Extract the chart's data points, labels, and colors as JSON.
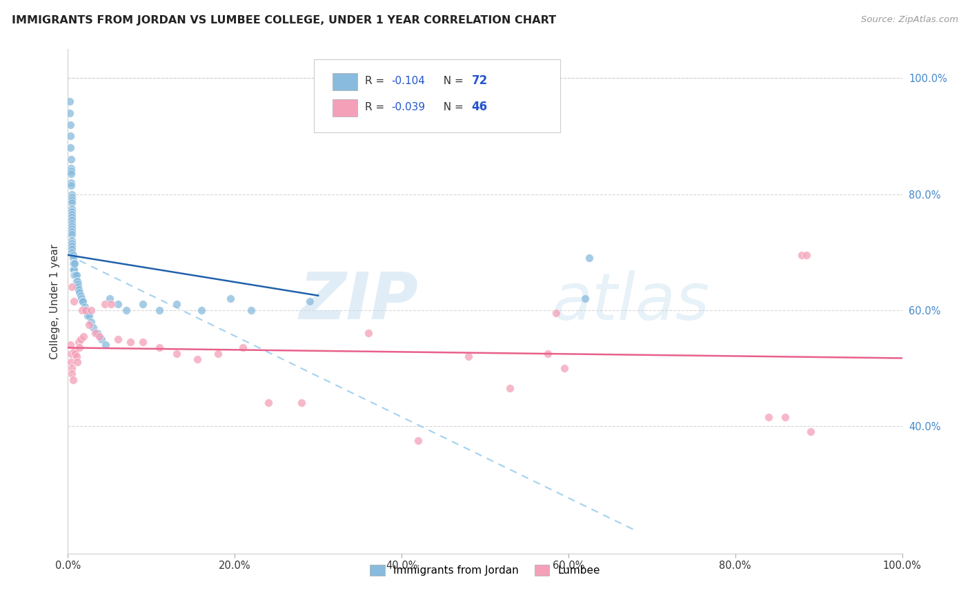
{
  "title": "IMMIGRANTS FROM JORDAN VS LUMBEE COLLEGE, UNDER 1 YEAR CORRELATION CHART",
  "source": "Source: ZipAtlas.com",
  "ylabel": "College, Under 1 year",
  "legend_label1": "Immigrants from Jordan",
  "legend_label2": "Lumbee",
  "r1": -0.104,
  "n1": 72,
  "r2": -0.039,
  "n2": 46,
  "xlim": [
    0.0,
    1.0
  ],
  "ylim": [
    0.18,
    1.05
  ],
  "xtick_labels": [
    "0.0%",
    "20.0%",
    "40.0%",
    "60.0%",
    "80.0%",
    "100.0%"
  ],
  "xtick_vals": [
    0.0,
    0.2,
    0.4,
    0.6,
    0.8,
    1.0
  ],
  "ytick_labels_right": [
    "40.0%",
    "60.0%",
    "80.0%",
    "100.0%"
  ],
  "ytick_vals_right": [
    0.4,
    0.6,
    0.8,
    1.0
  ],
  "color_blue": "#88bbdd",
  "color_pink": "#f4a0b8",
  "color_line_blue": "#2060aa",
  "color_line_pink": "#e8608a",
  "color_dashed": "#99ccee",
  "background": "#ffffff",
  "watermark_zip": "ZIP",
  "watermark_atlas": "atlas",
  "blue_line_x0": 0.0,
  "blue_line_y0": 0.695,
  "blue_line_x1": 0.3,
  "blue_line_y1": 0.625,
  "dash_line_x0": 0.0,
  "dash_line_y0": 0.695,
  "dash_line_x1": 0.68,
  "dash_line_y1": 0.22,
  "pink_line_x0": 0.0,
  "pink_line_y0": 0.535,
  "pink_line_x1": 1.0,
  "pink_line_y1": 0.517,
  "blue_points_x": [
    0.002,
    0.002,
    0.003,
    0.003,
    0.003,
    0.004,
    0.004,
    0.004,
    0.004,
    0.004,
    0.004,
    0.005,
    0.005,
    0.005,
    0.005,
    0.005,
    0.005,
    0.005,
    0.005,
    0.005,
    0.005,
    0.005,
    0.005,
    0.005,
    0.005,
    0.005,
    0.005,
    0.005,
    0.005,
    0.005,
    0.006,
    0.006,
    0.006,
    0.006,
    0.007,
    0.007,
    0.007,
    0.008,
    0.008,
    0.009,
    0.01,
    0.01,
    0.011,
    0.012,
    0.012,
    0.013,
    0.014,
    0.015,
    0.016,
    0.017,
    0.018,
    0.02,
    0.022,
    0.024,
    0.025,
    0.028,
    0.03,
    0.035,
    0.04,
    0.045,
    0.05,
    0.06,
    0.07,
    0.09,
    0.11,
    0.13,
    0.16,
    0.195,
    0.22,
    0.29,
    0.62,
    0.625
  ],
  "blue_points_y": [
    0.96,
    0.94,
    0.92,
    0.9,
    0.88,
    0.86,
    0.845,
    0.84,
    0.835,
    0.82,
    0.815,
    0.8,
    0.795,
    0.79,
    0.785,
    0.775,
    0.77,
    0.765,
    0.76,
    0.755,
    0.75,
    0.745,
    0.74,
    0.735,
    0.73,
    0.72,
    0.715,
    0.71,
    0.705,
    0.7,
    0.695,
    0.69,
    0.68,
    0.67,
    0.68,
    0.67,
    0.66,
    0.68,
    0.66,
    0.66,
    0.66,
    0.65,
    0.65,
    0.645,
    0.64,
    0.635,
    0.63,
    0.625,
    0.62,
    0.615,
    0.615,
    0.605,
    0.6,
    0.59,
    0.59,
    0.58,
    0.57,
    0.56,
    0.55,
    0.54,
    0.62,
    0.61,
    0.6,
    0.61,
    0.6,
    0.61,
    0.6,
    0.62,
    0.6,
    0.615,
    0.62,
    0.69
  ],
  "pink_points_x": [
    0.003,
    0.004,
    0.004,
    0.005,
    0.005,
    0.005,
    0.006,
    0.007,
    0.008,
    0.009,
    0.01,
    0.011,
    0.013,
    0.014,
    0.015,
    0.017,
    0.019,
    0.021,
    0.025,
    0.028,
    0.033,
    0.038,
    0.044,
    0.052,
    0.06,
    0.075,
    0.09,
    0.11,
    0.13,
    0.155,
    0.18,
    0.21,
    0.24,
    0.28,
    0.36,
    0.42,
    0.48,
    0.53,
    0.575,
    0.585,
    0.595,
    0.84,
    0.86,
    0.88,
    0.885,
    0.89
  ],
  "pink_points_y": [
    0.54,
    0.525,
    0.51,
    0.5,
    0.64,
    0.49,
    0.48,
    0.615,
    0.53,
    0.525,
    0.52,
    0.51,
    0.545,
    0.535,
    0.55,
    0.6,
    0.555,
    0.6,
    0.575,
    0.6,
    0.56,
    0.555,
    0.61,
    0.61,
    0.55,
    0.545,
    0.545,
    0.535,
    0.525,
    0.515,
    0.525,
    0.535,
    0.44,
    0.44,
    0.56,
    0.375,
    0.52,
    0.465,
    0.525,
    0.595,
    0.5,
    0.415,
    0.415,
    0.695,
    0.695,
    0.39
  ]
}
